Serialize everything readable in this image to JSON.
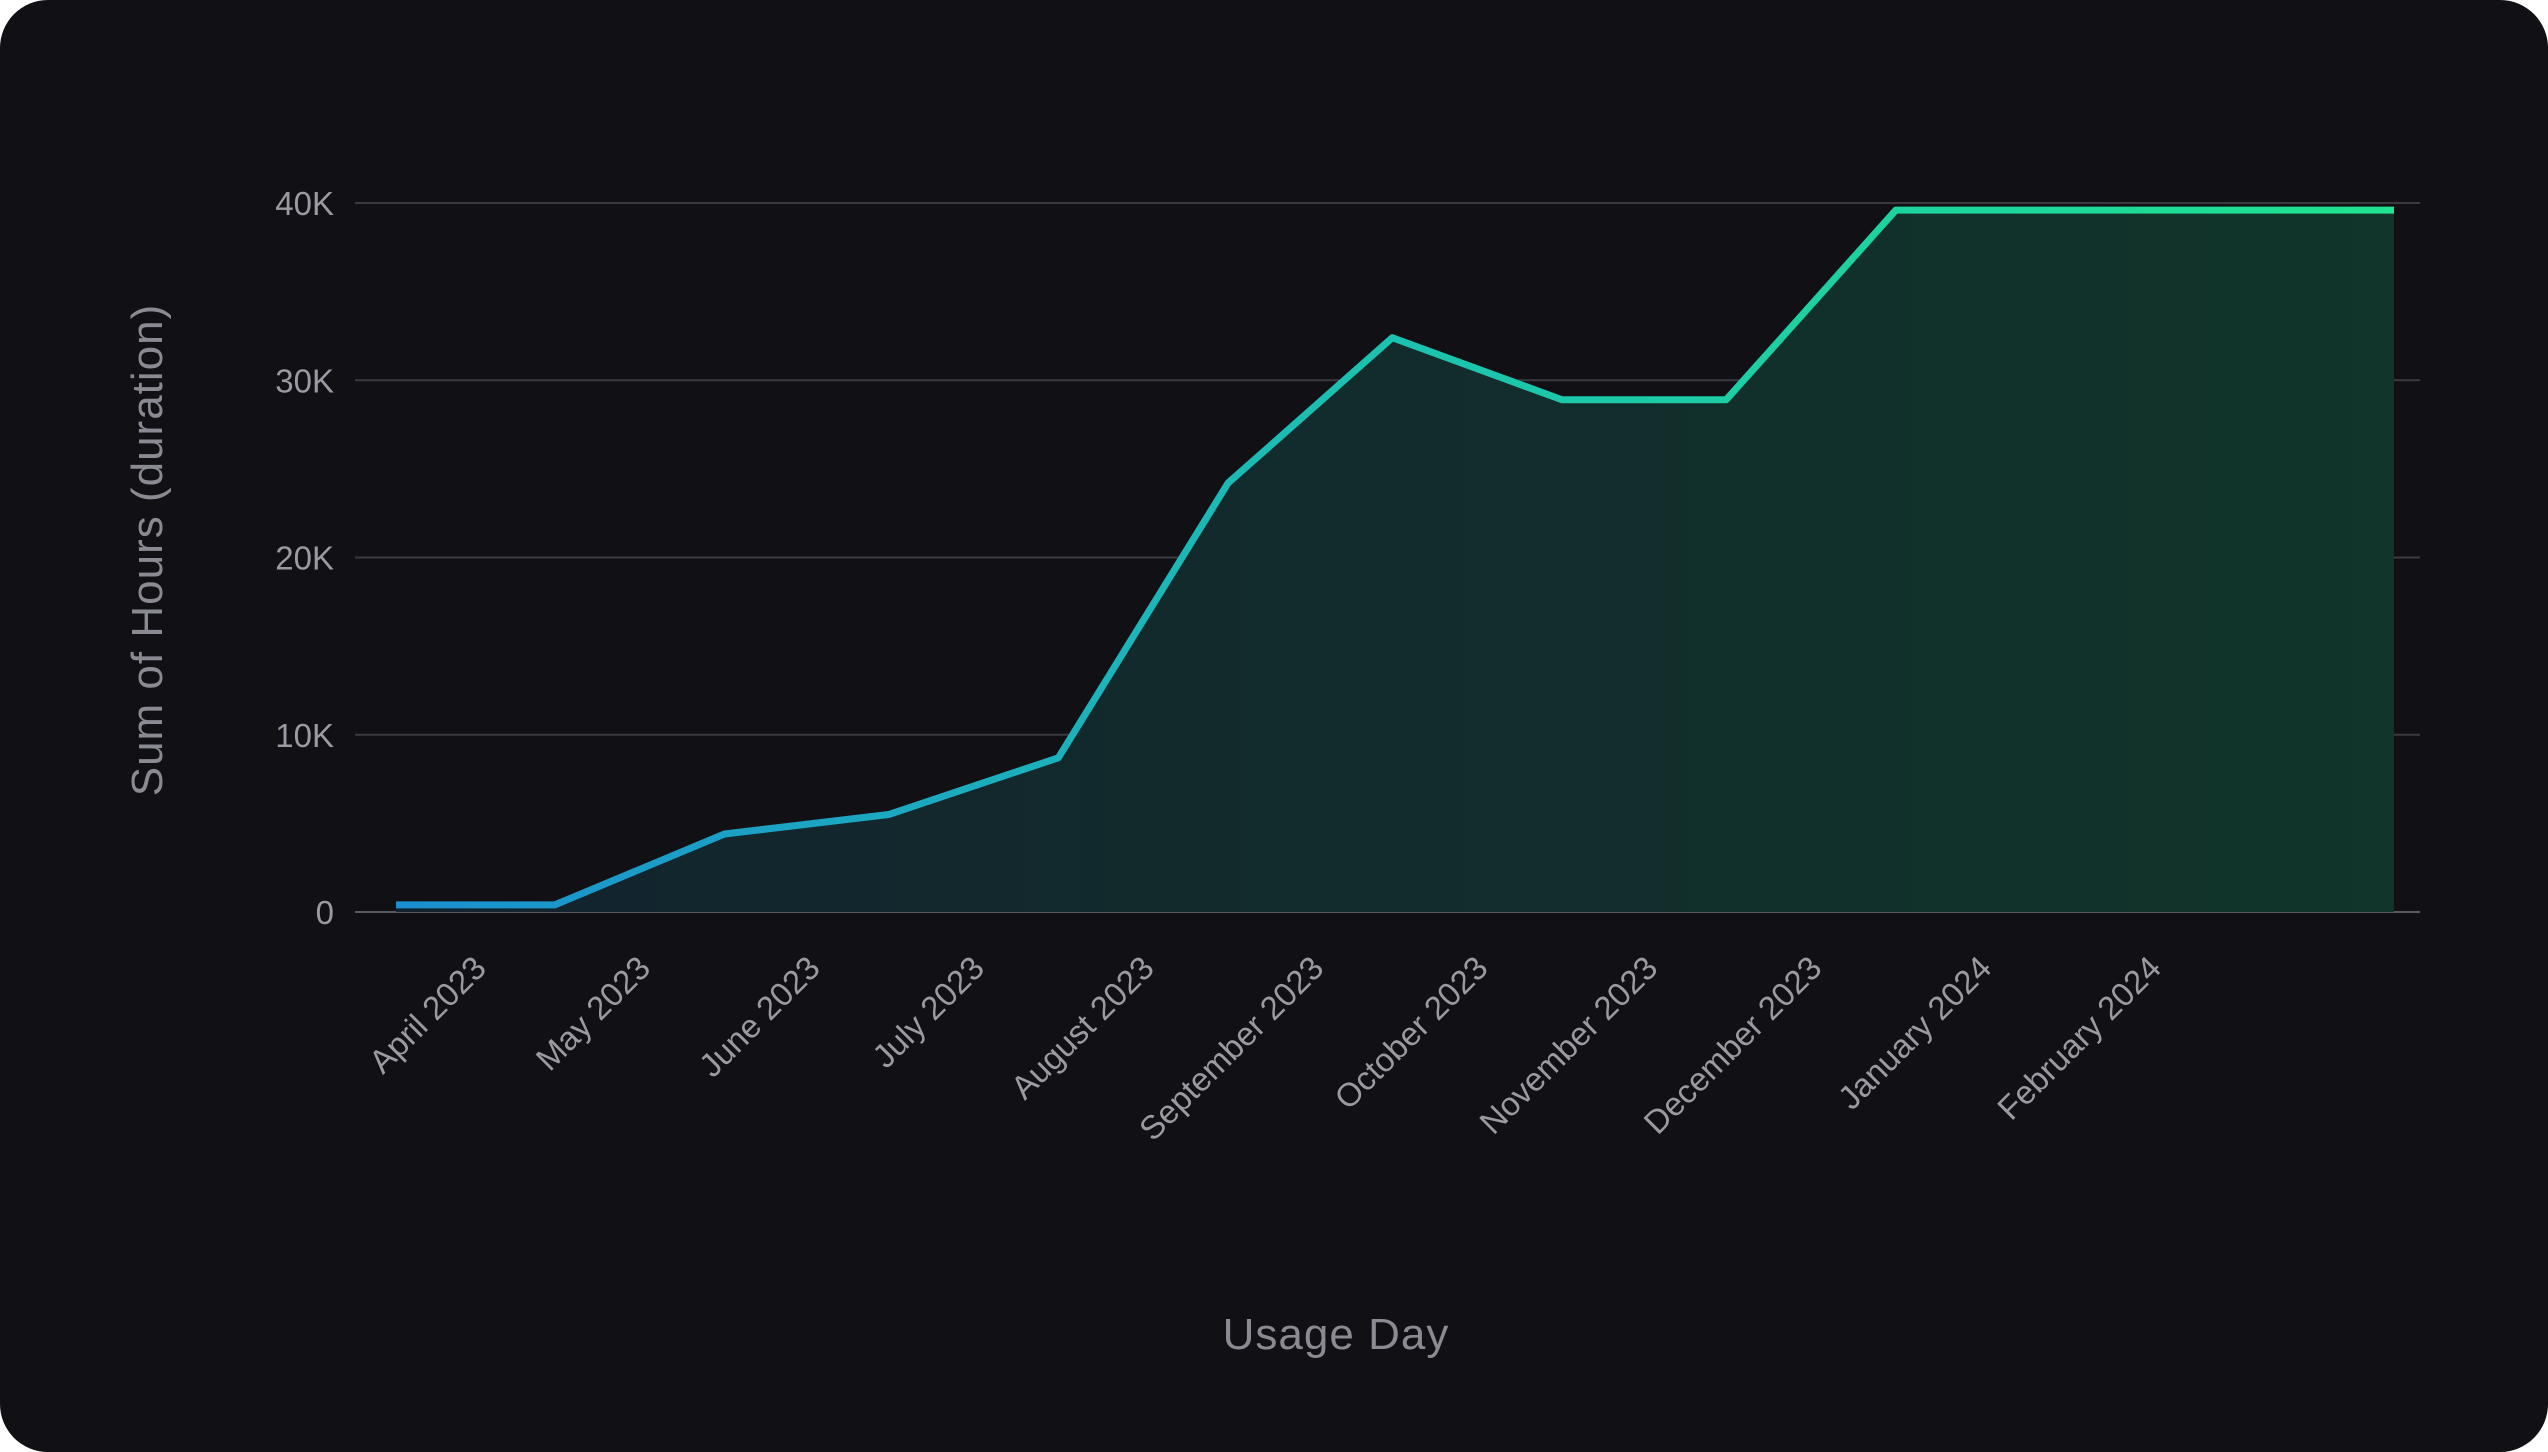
{
  "chart_data": {
    "type": "area",
    "categories": [
      "April 2023",
      "May 2023",
      "June 2023",
      "July 2023",
      "August 2023",
      "September 2023",
      "October 2023",
      "November 2023",
      "December 2023",
      "January 2024",
      "February 2024"
    ],
    "x": [
      "2023-04-01",
      "2023-04-30",
      "2023-05-31",
      "2023-06-30",
      "2023-07-31",
      "2023-08-31",
      "2023-09-30",
      "2023-10-31",
      "2023-11-30",
      "2023-12-31",
      "2024-01-31",
      "2024-02-29",
      "2024-03-31"
    ],
    "values": [
      400,
      400,
      4400,
      5500,
      8700,
      24200,
      32400,
      28900,
      28900,
      39600,
      39600,
      39600,
      39600
    ],
    "xlabel": "Usage Day",
    "ylabel": "Sum of Hours (duration)",
    "yticks": [
      "0",
      "10K",
      "20K",
      "30K",
      "40K"
    ],
    "ylim": [
      0,
      40000
    ],
    "grid": true,
    "colors": {
      "background": "#101015",
      "line_start": "#1b8fd0",
      "line_mid": "#1cc2b0",
      "line_end": "#20e38e",
      "area_start": "#12232e",
      "area_end": "#11352a",
      "grid": "#3a3a40",
      "axis": "#5a5a62"
    }
  }
}
